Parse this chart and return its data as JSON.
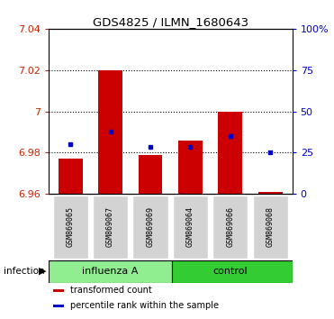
{
  "title": "GDS4825 / ILMN_1680643",
  "samples": [
    "GSM869065",
    "GSM869067",
    "GSM869069",
    "GSM869064",
    "GSM869066",
    "GSM869068"
  ],
  "red_values": [
    6.977,
    7.02,
    6.979,
    6.986,
    7.0,
    6.961
  ],
  "blue_values": [
    6.984,
    6.99,
    6.983,
    6.983,
    6.988,
    6.98
  ],
  "ylim_left": [
    6.96,
    7.04
  ],
  "ylim_right": [
    0,
    100
  ],
  "yticks_left": [
    6.96,
    6.98,
    7.0,
    7.02,
    7.04
  ],
  "yticks_right": [
    0,
    25,
    50,
    75,
    100
  ],
  "ytick_labels_left": [
    "6.96",
    "6.98",
    "7",
    "7.02",
    "7.04"
  ],
  "ytick_labels_right": [
    "0",
    "25",
    "50",
    "75",
    "100%"
  ],
  "bar_bottom": 6.96,
  "red_color": "#CC0000",
  "blue_color": "#0000CC",
  "bg_color": "#FFFFFF",
  "label_color_left": "#CC2200",
  "label_color_right": "#0000CC",
  "legend_red_label": "transformed count",
  "legend_blue_label": "percentile rank within the sample",
  "sample_bg_color": "#D3D3D3",
  "influenza_bg": "#90EE90",
  "control_bg": "#33CC33",
  "factor_label": "infection"
}
